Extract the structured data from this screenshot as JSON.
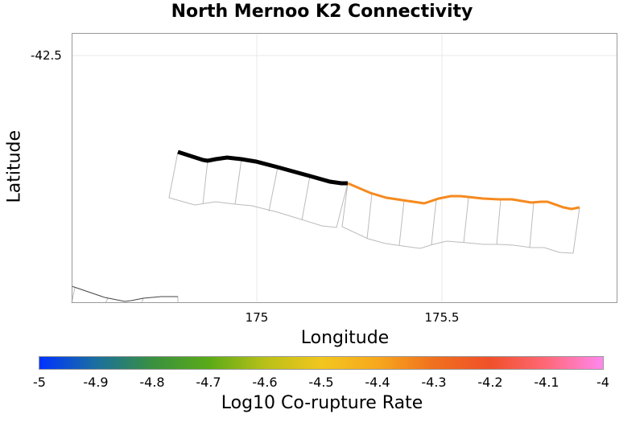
{
  "title": "North Mernoo K2 Connectivity",
  "x_axis": {
    "label": "Longitude",
    "ticks": [
      "175",
      "175.5"
    ]
  },
  "y_axis": {
    "label": "Latitude",
    "ticks": [
      "-42.5"
    ]
  },
  "colorbar": {
    "label": "Log10 Co-rupture Rate",
    "ticks": [
      "-5",
      "-4.9",
      "-4.8",
      "-4.7",
      "-4.6",
      "-4.5",
      "-4.4",
      "-4.3",
      "-4.2",
      "-4.1",
      "-4"
    ],
    "range": [
      -5,
      -4
    ]
  },
  "colors": {
    "selected": "#000000",
    "connected": "#f58a1e",
    "outline": "#bbbbbb"
  }
}
